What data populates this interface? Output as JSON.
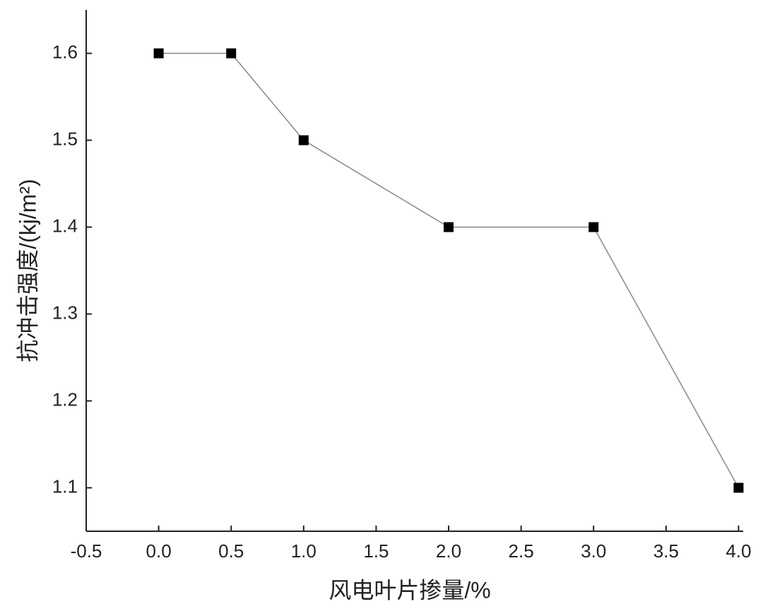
{
  "chart_data": {
    "type": "line",
    "x_label": "风电叶片掺量/%",
    "y_label": "抗冲击强度/(kj/m²)",
    "x_axis_labels": [
      "-0.5",
      "0.0",
      "0.5",
      "1.0",
      "1.5",
      "2.0",
      "2.5",
      "3.0",
      "3.5",
      "4.0"
    ],
    "x": [
      "0.0",
      "0.5",
      "1.0",
      "2.0",
      "3.0",
      "4.0"
    ],
    "values": [
      1.6,
      1.6,
      1.5,
      1.4,
      1.4,
      1.1
    ],
    "color": "#000000",
    "line_color": "#888888",
    "ylim": [
      1.05,
      1.65
    ],
    "yticks": [
      1.1,
      1.2,
      1.3,
      1.4,
      1.5,
      1.6
    ]
  }
}
